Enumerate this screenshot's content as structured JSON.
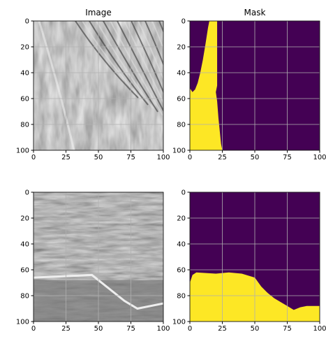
{
  "chart_data": [
    {
      "type": "image",
      "title": "Image",
      "xlim": [
        0,
        100
      ],
      "ylim": [
        100,
        0
      ],
      "xticks": [
        0,
        25,
        50,
        75,
        100
      ],
      "yticks": [
        0,
        20,
        40,
        60,
        80,
        100
      ],
      "grid": true
    },
    {
      "type": "mask",
      "title": "Mask",
      "color": "#fde725",
      "background": "#440154",
      "x": [
        0,
        0,
        2,
        4,
        6,
        8,
        10,
        12,
        14,
        15,
        21,
        21,
        20,
        21,
        22,
        23,
        24,
        25
      ],
      "values": [
        100,
        52,
        55,
        53,
        48,
        40,
        30,
        18,
        5,
        0,
        0,
        50,
        55,
        62,
        75,
        85,
        95,
        100
      ],
      "xlim": [
        0,
        100
      ],
      "ylim": [
        100,
        0
      ],
      "xticks": [
        0,
        25,
        50,
        75,
        100
      ],
      "yticks": [
        0,
        20,
        40,
        60,
        80,
        100
      ],
      "grid": true
    },
    {
      "type": "image",
      "xlim": [
        0,
        100
      ],
      "ylim": [
        100,
        0
      ],
      "xticks": [
        0,
        25,
        50,
        75,
        100
      ],
      "yticks": [
        0,
        20,
        40,
        60,
        80,
        100
      ],
      "grid": true
    },
    {
      "type": "mask",
      "color": "#fde725",
      "background": "#440154",
      "x": [
        0,
        0,
        2,
        5,
        20,
        30,
        40,
        50,
        55,
        60,
        65,
        70,
        75,
        80,
        85,
        90,
        100,
        100
      ],
      "values": [
        100,
        70,
        64,
        62,
        63,
        62,
        63,
        66,
        73,
        78,
        82,
        85,
        88,
        91,
        89,
        88,
        88,
        100
      ],
      "xlim": [
        0,
        100
      ],
      "ylim": [
        100,
        0
      ],
      "xticks": [
        0,
        25,
        50,
        75,
        100
      ],
      "yticks": [
        0,
        20,
        40,
        60,
        80,
        100
      ],
      "grid": true
    }
  ]
}
